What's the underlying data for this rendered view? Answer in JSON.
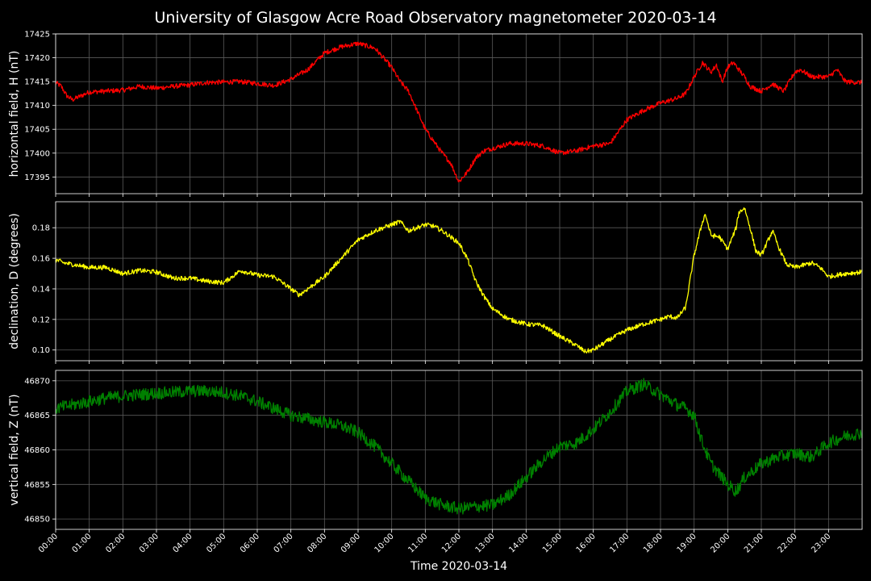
{
  "chart_data": {
    "type": "line",
    "title": "University of Glasgow Acre Road Observatory magnetometer 2020-03-14",
    "xlabel": "Time 2020-03-14",
    "x_ticks": [
      "00:00",
      "01:00",
      "02:00",
      "03:00",
      "04:00",
      "05:00",
      "06:00",
      "07:00",
      "08:00",
      "09:00",
      "10:00",
      "11:00",
      "12:00",
      "13:00",
      "14:00",
      "15:00",
      "16:00",
      "17:00",
      "18:00",
      "19:00",
      "20:00",
      "21:00",
      "22:00",
      "23:00"
    ],
    "xlim": [
      "00:00",
      "24:00"
    ],
    "grid": true,
    "panels": [
      {
        "ylabel": "horizontal field, H (nT)",
        "color": "#ff0000",
        "ylim": [
          17391.5,
          17425
        ],
        "y_ticks": [
          17395,
          17400,
          17405,
          17410,
          17415,
          17420,
          17425
        ],
        "noise": 0.5,
        "series": {
          "name": "H",
          "x": [
            "00:00",
            "00:10",
            "00:20",
            "00:30",
            "01:00",
            "01:30",
            "02:00",
            "02:30",
            "03:00",
            "03:30",
            "04:00",
            "04:30",
            "05:00",
            "05:30",
            "06:00",
            "06:30",
            "07:00",
            "07:30",
            "08:00",
            "08:30",
            "09:00",
            "09:15",
            "09:30",
            "09:45",
            "10:00",
            "10:15",
            "10:30",
            "10:45",
            "11:00",
            "11:15",
            "11:30",
            "11:45",
            "12:00",
            "12:15",
            "12:30",
            "12:45",
            "13:00",
            "13:30",
            "14:00",
            "14:30",
            "15:00",
            "15:30",
            "16:00",
            "16:30",
            "17:00",
            "17:30",
            "18:00",
            "18:30",
            "18:45",
            "19:00",
            "19:15",
            "19:30",
            "19:40",
            "19:50",
            "20:00",
            "20:10",
            "20:20",
            "20:30",
            "20:40",
            "21:00",
            "21:20",
            "21:40",
            "22:00",
            "22:10",
            "22:30",
            "23:00",
            "23:15",
            "23:30",
            "23:59"
          ],
          "values": [
            17414.8,
            17414.0,
            17412.0,
            17411.2,
            17412.8,
            17413.0,
            17413.2,
            17414.0,
            17413.6,
            17414.0,
            17414.3,
            17414.8,
            17414.9,
            17415.0,
            17414.6,
            17414.2,
            17415.5,
            17417.5,
            17421.0,
            17422.3,
            17423.0,
            17422.5,
            17422.0,
            17420.0,
            17418.0,
            17415.0,
            17413.0,
            17409.0,
            17405.0,
            17402.5,
            17400.0,
            17398.0,
            17394.0,
            17396.0,
            17399.0,
            17400.5,
            17401.0,
            17402.0,
            17402.0,
            17401.5,
            17400.0,
            17400.5,
            17401.5,
            17402.0,
            17407.0,
            17409.0,
            17410.5,
            17411.5,
            17412.5,
            17416.0,
            17419.0,
            17417.0,
            17418.5,
            17415.0,
            17418.0,
            17419.0,
            17417.5,
            17416.0,
            17414.0,
            17413.0,
            17414.5,
            17413.0,
            17417.0,
            17417.5,
            17416.0,
            17416.0,
            17417.5,
            17415.0,
            17414.8
          ]
        }
      },
      {
        "ylabel": "declination, D (degrees)",
        "color": "#ffff00",
        "ylim": [
          0.093,
          0.197
        ],
        "y_ticks": [
          0.1,
          0.12,
          0.14,
          0.16,
          0.18
        ],
        "noise": 0.0015,
        "series": {
          "name": "D",
          "x": [
            "00:00",
            "00:15",
            "00:30",
            "01:00",
            "01:30",
            "02:00",
            "02:30",
            "03:00",
            "03:30",
            "04:00",
            "04:30",
            "05:00",
            "05:15",
            "05:30",
            "06:00",
            "06:30",
            "07:00",
            "07:15",
            "07:30",
            "08:00",
            "08:30",
            "09:00",
            "09:30",
            "10:00",
            "10:15",
            "10:30",
            "11:00",
            "11:15",
            "11:30",
            "11:45",
            "12:00",
            "12:15",
            "12:30",
            "12:45",
            "13:00",
            "13:30",
            "14:00",
            "14:30",
            "15:00",
            "15:30",
            "15:45",
            "16:00",
            "16:30",
            "17:00",
            "17:30",
            "18:00",
            "18:15",
            "18:30",
            "18:45",
            "19:00",
            "19:15",
            "19:20",
            "19:30",
            "19:45",
            "20:00",
            "20:15",
            "20:20",
            "20:30",
            "20:40",
            "20:50",
            "21:00",
            "21:10",
            "21:20",
            "21:30",
            "21:45",
            "22:00",
            "22:30",
            "22:45",
            "23:00",
            "23:30",
            "23:59"
          ],
          "values": [
            0.159,
            0.157,
            0.156,
            0.154,
            0.154,
            0.15,
            0.152,
            0.151,
            0.147,
            0.147,
            0.145,
            0.144,
            0.148,
            0.152,
            0.149,
            0.148,
            0.14,
            0.136,
            0.14,
            0.148,
            0.16,
            0.172,
            0.178,
            0.182,
            0.184,
            0.178,
            0.182,
            0.181,
            0.178,
            0.174,
            0.17,
            0.16,
            0.145,
            0.135,
            0.127,
            0.12,
            0.117,
            0.116,
            0.109,
            0.103,
            0.099,
            0.1,
            0.107,
            0.113,
            0.117,
            0.12,
            0.122,
            0.121,
            0.128,
            0.162,
            0.184,
            0.189,
            0.175,
            0.174,
            0.166,
            0.18,
            0.19,
            0.193,
            0.18,
            0.165,
            0.162,
            0.17,
            0.178,
            0.168,
            0.156,
            0.154,
            0.157,
            0.154,
            0.148,
            0.15,
            0.151
          ]
        }
      },
      {
        "ylabel": "vertical field, Z (nT)",
        "color": "#008000",
        "ylim": [
          46848.5,
          46871.5
        ],
        "y_ticks": [
          46850,
          46855,
          46860,
          46865,
          46870
        ],
        "noise": 0.9,
        "series": {
          "name": "Z",
          "x": [
            "00:00",
            "00:30",
            "01:00",
            "01:30",
            "02:00",
            "02:30",
            "03:00",
            "03:30",
            "04:00",
            "04:30",
            "05:00",
            "05:30",
            "06:00",
            "06:30",
            "07:00",
            "07:30",
            "08:00",
            "08:30",
            "09:00",
            "09:30",
            "10:00",
            "10:30",
            "11:00",
            "11:30",
            "12:00",
            "12:30",
            "13:00",
            "13:30",
            "14:00",
            "14:30",
            "15:00",
            "15:30",
            "16:00",
            "16:30",
            "17:00",
            "17:30",
            "18:00",
            "18:30",
            "18:45",
            "19:00",
            "19:15",
            "19:30",
            "20:00",
            "20:15",
            "20:30",
            "20:45",
            "21:00",
            "21:30",
            "22:00",
            "22:30",
            "23:00",
            "23:30",
            "23:59"
          ],
          "values": [
            46866.0,
            46866.5,
            46867.0,
            46867.5,
            46867.8,
            46868.0,
            46868.2,
            46868.3,
            46868.5,
            46868.5,
            46868.3,
            46867.8,
            46867.0,
            46866.0,
            46865.0,
            46864.5,
            46864.0,
            46863.5,
            46862.5,
            46860.5,
            46858.0,
            46855.5,
            46853.0,
            46852.0,
            46851.5,
            46851.8,
            46852.0,
            46853.5,
            46856.0,
            46858.5,
            46860.5,
            46861.0,
            46863.0,
            46865.5,
            46868.5,
            46869.5,
            46868.0,
            46866.5,
            46866.0,
            46865.0,
            46861.0,
            46858.0,
            46855.0,
            46854.0,
            46856.0,
            46857.0,
            46858.0,
            46859.0,
            46859.5,
            46859.0,
            46861.0,
            46862.0,
            46862.5
          ]
        }
      }
    ]
  }
}
